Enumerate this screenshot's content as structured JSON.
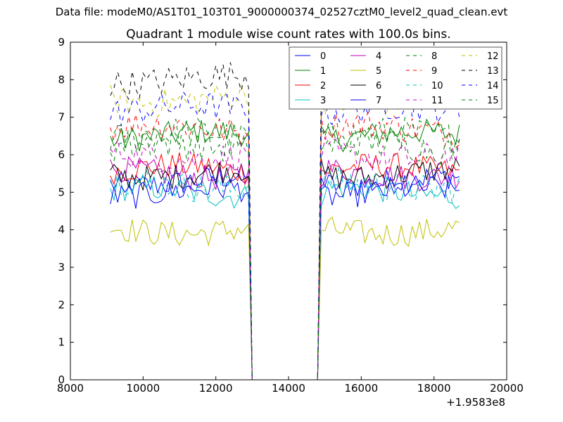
{
  "header": {
    "data_file": "Data file: modeM0/AS1T01_103T01_9000000374_02527cztM0_level2_quad_clean.evt"
  },
  "chart_data": {
    "type": "line",
    "title": "Quadrant 1 module wise count rates with 100.0s bins.",
    "xlabel": "",
    "ylabel": "",
    "x_offset_label": "+1.9583e8",
    "xlim": [
      8000,
      20000
    ],
    "ylim": [
      0,
      9
    ],
    "xticks": [
      8000,
      10000,
      12000,
      14000,
      16000,
      18000,
      20000
    ],
    "yticks": [
      0,
      1,
      2,
      3,
      4,
      5,
      6,
      7,
      8,
      9
    ],
    "x_range_data": [
      9100,
      18700
    ],
    "bin_seconds": 100,
    "gap": [
      13000,
      14800
    ],
    "legend_placement": "top-right",
    "legend_columns": 4,
    "series": [
      {
        "name": "0",
        "color": "#0000ff",
        "dash": "solid",
        "mean": 5.3
      },
      {
        "name": "1",
        "color": "#008000",
        "dash": "solid",
        "mean": 6.5
      },
      {
        "name": "2",
        "color": "#ff0000",
        "dash": "solid",
        "mean": 5.6
      },
      {
        "name": "3",
        "color": "#00bfbf",
        "dash": "solid",
        "mean": 5.0
      },
      {
        "name": "4",
        "color": "#bf00bf",
        "dash": "solid",
        "mean": 5.5
      },
      {
        "name": "5",
        "color": "#bfbf00",
        "dash": "solid",
        "mean": 4.0
      },
      {
        "name": "6",
        "color": "#000000",
        "dash": "solid",
        "mean": 5.5
      },
      {
        "name": "7",
        "color": "#0000ff",
        "dash": "solid",
        "mean": 5.0
      },
      {
        "name": "8",
        "color": "#008000",
        "dash": "dashed",
        "mean": 6.5
      },
      {
        "name": "9",
        "color": "#ff0000",
        "dash": "dashed",
        "mean": 6.7
      },
      {
        "name": "10",
        "color": "#00bfbf",
        "dash": "dashed",
        "mean": 5.2
      },
      {
        "name": "11",
        "color": "#bf00bf",
        "dash": "dashed",
        "mean": 6.0
      },
      {
        "name": "12",
        "color": "#bfbf00",
        "dash": "dashed",
        "mean": 7.5
      },
      {
        "name": "13",
        "color": "#000000",
        "dash": "dashed",
        "mean": 8.0
      },
      {
        "name": "14",
        "color": "#0000ff",
        "dash": "dashed",
        "mean": 7.2
      },
      {
        "name": "15",
        "color": "#008000",
        "dash": "dashed",
        "mean": 6.2
      }
    ]
  }
}
